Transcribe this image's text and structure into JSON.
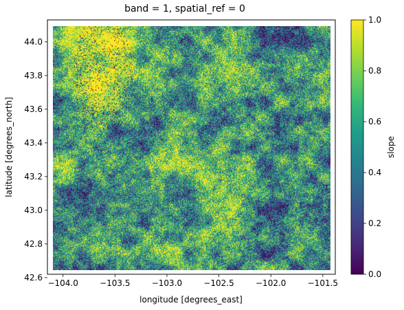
{
  "chart_data": {
    "type": "heatmap",
    "title": "band = 1, spatial_ref = 0",
    "xlabel": "longitude [degrees_east]",
    "ylabel": "latitude [degrees_north]",
    "xlim": [
      -104.15,
      -101.38
    ],
    "ylim": [
      42.62,
      44.13
    ],
    "data_extent": {
      "x": [
        -104.1,
        -101.43
      ],
      "y": [
        42.645,
        44.095
      ]
    },
    "x_ticks": [
      {
        "value": -104.0,
        "label": "−104.0"
      },
      {
        "value": -103.5,
        "label": "−103.5"
      },
      {
        "value": -103.0,
        "label": "−103.0"
      },
      {
        "value": -102.5,
        "label": "−102.5"
      },
      {
        "value": -102.0,
        "label": "−102.0"
      },
      {
        "value": -101.5,
        "label": "−101.5"
      }
    ],
    "y_ticks": [
      {
        "value": 42.6,
        "label": "42.6"
      },
      {
        "value": 42.8,
        "label": "42.8"
      },
      {
        "value": 43.0,
        "label": "43.0"
      },
      {
        "value": 43.2,
        "label": "43.2"
      },
      {
        "value": 43.4,
        "label": "43.4"
      },
      {
        "value": 43.6,
        "label": "43.6"
      },
      {
        "value": 43.8,
        "label": "43.8"
      },
      {
        "value": 44.0,
        "label": "44.0"
      }
    ],
    "colorbar": {
      "label": "slope",
      "range": [
        0.0,
        1.0
      ],
      "colormap": "viridis",
      "ticks": [
        {
          "value": 0.0,
          "label": "0.0"
        },
        {
          "value": 0.2,
          "label": "0.2"
        },
        {
          "value": 0.4,
          "label": "0.4"
        },
        {
          "value": 0.6,
          "label": "0.6"
        },
        {
          "value": 0.8,
          "label": "0.8"
        },
        {
          "value": 1.0,
          "label": "1.0"
        }
      ]
    },
    "viridis_stops": [
      "#440154",
      "#482878",
      "#3e4989",
      "#31688e",
      "#26828e",
      "#1f9e89",
      "#35b779",
      "#6ece58",
      "#b5de2b",
      "#fde725"
    ],
    "grid": false
  }
}
